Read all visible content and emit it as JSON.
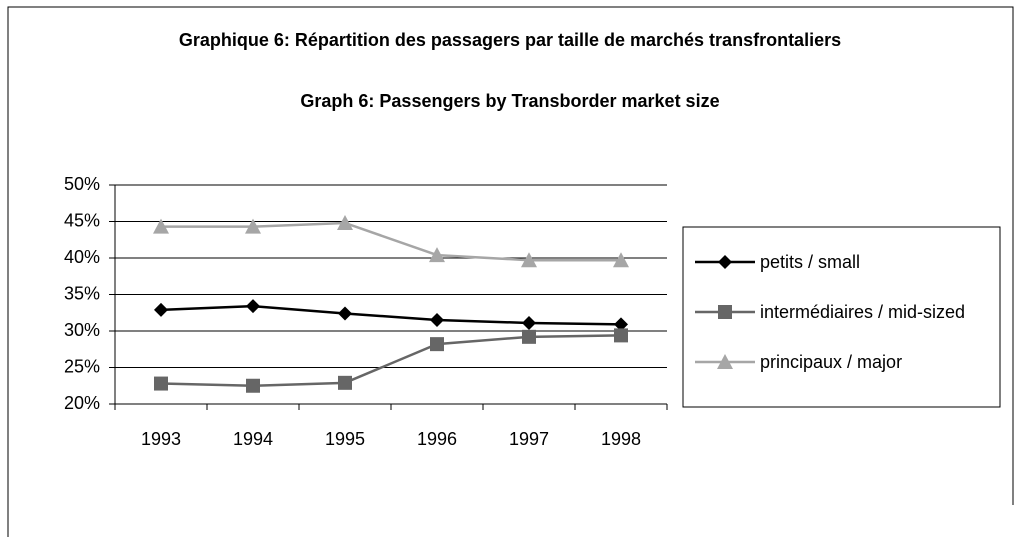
{
  "chart_data": {
    "type": "line",
    "title": "Graphique 6: Répartition des passagers par taille de marchés transfrontaliers",
    "subtitle": "Graph 6: Passengers by Transborder market size",
    "categories": [
      "1993",
      "1994",
      "1995",
      "1996",
      "1997",
      "1998"
    ],
    "series": [
      {
        "name": "petits / small",
        "color": "#000000",
        "marker": "diamond",
        "values": [
          32.9,
          33.4,
          32.4,
          31.5,
          31.1,
          30.9
        ]
      },
      {
        "name": "intermédiaires / mid-sized",
        "color": "#666666",
        "marker": "square",
        "values": [
          22.8,
          22.5,
          22.9,
          28.2,
          29.2,
          29.4
        ]
      },
      {
        "name": "principaux / major",
        "color": "#a6a6a6",
        "marker": "triangle",
        "values": [
          44.3,
          44.3,
          44.8,
          40.4,
          39.7,
          39.7
        ]
      }
    ],
    "ylim": [
      20,
      50
    ],
    "yticks": [
      {
        "value": 20,
        "label": "20%"
      },
      {
        "value": 25,
        "label": "25%"
      },
      {
        "value": 30,
        "label": "30%"
      },
      {
        "value": 35,
        "label": "35%"
      },
      {
        "value": 40,
        "label": "40%"
      },
      {
        "value": 45,
        "label": "45%"
      },
      {
        "value": 50,
        "label": "50%"
      }
    ],
    "grid": true,
    "legend": "right"
  }
}
